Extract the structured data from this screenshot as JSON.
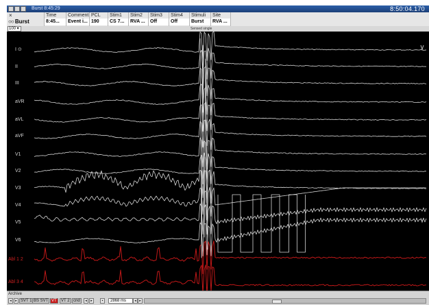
{
  "window": {
    "title": "Burst   8:45:29",
    "time": "8:50:04.170"
  },
  "infobar": {
    "protocol": "Burst",
    "columns": [
      {
        "header": "Time",
        "value": "8:45..."
      },
      {
        "header": "Comment",
        "value": "Event i..."
      },
      {
        "header": "PCL",
        "value": "190"
      },
      {
        "header": "Stim1",
        "value": "CS 7..."
      },
      {
        "header": "Stim2",
        "value": "RVA ..."
      },
      {
        "header": "Stim3",
        "value": "Off"
      },
      {
        "header": "Stim4",
        "value": "Off"
      },
      {
        "header": "Stimuli",
        "value": "Burst"
      },
      {
        "header": "Site",
        "value": "RVA ..."
      }
    ]
  },
  "subbar": {
    "zoom": "100",
    "label": "Sensed single"
  },
  "leads": [
    {
      "label": "I",
      "color": "#d8d8d8"
    },
    {
      "label": "II",
      "color": "#d8d8d8"
    },
    {
      "label": "III",
      "color": "#d8d8d8"
    },
    {
      "label": "aVR",
      "color": "#d8d8d8"
    },
    {
      "label": "aVL",
      "color": "#d8d8d8"
    },
    {
      "label": "aVF",
      "color": "#d8d8d8"
    },
    {
      "label": "V1",
      "color": "#d8d8d8"
    },
    {
      "label": "V2",
      "color": "#d8d8d8"
    },
    {
      "label": "V3",
      "color": "#d8d8d8"
    },
    {
      "label": "V4",
      "color": "#d8d8d8"
    },
    {
      "label": "V5",
      "color": "#d8d8d8"
    },
    {
      "label": "V6",
      "color": "#d8d8d8"
    },
    {
      "label": "Abl 1 2",
      "color": "#d02020"
    },
    {
      "label": "Abl 3 4",
      "color": "#d02020"
    }
  ],
  "bottombar": {
    "archive_label": "Archive",
    "tabs": [
      "SVT 1",
      "BS SVT",
      "VT",
      "VT 2",
      "cnd"
    ],
    "active_tab": "VT",
    "duration": "2868 ms"
  },
  "colors": {
    "trace": "#d8d8d8",
    "ablation_trace": "#c01818",
    "background": "#000000",
    "titlebar": "#2c5fa8"
  }
}
